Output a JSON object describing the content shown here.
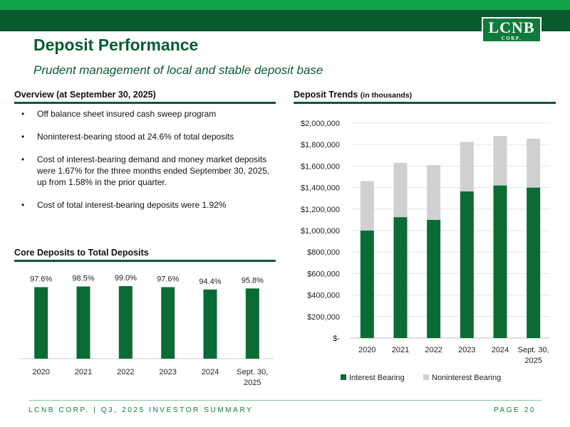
{
  "header": {
    "logo_main": "LCNB",
    "logo_sub": "CORP.",
    "title": "Deposit Performance",
    "subtitle": "Prudent management of local and stable deposit base"
  },
  "overview": {
    "heading": "Overview (at September 30, 2025)",
    "bullets": [
      "Off balance sheet insured cash sweep program",
      "Noninterest-bearing stood at 24.6% of total deposits",
      "Cost of interest-bearing demand and money market deposits were 1.67% for the three months ended September 30, 2025, up from 1.58% in the prior quarter.",
      "Cost of total interest-bearing deposits were 1.92%"
    ]
  },
  "core_deposits": {
    "heading": "Core Deposits to Total Deposits"
  },
  "deposit_trends": {
    "heading": "Deposit Trends",
    "heading_suffix": "(in thousands)"
  },
  "footer": {
    "left": "LCNB CORP. | Q3, 2025 INVESTOR SUMMARY",
    "right": "PAGE 20"
  },
  "colors": {
    "green": "#0b6b35",
    "gray": "#d0d0d0",
    "dark_green": "#0b5a30"
  },
  "chart_data": [
    {
      "type": "bar",
      "title": "Core Deposits to Total Deposits",
      "categories": [
        "2020",
        "2021",
        "2022",
        "2023",
        "2024",
        "Sept. 30, 2025"
      ],
      "values": [
        97.6,
        98.5,
        99.0,
        97.6,
        94.4,
        95.8
      ],
      "value_labels": [
        "97.6%",
        "98.5%",
        "99.0%",
        "97.6%",
        "94.4%",
        "95.8%"
      ],
      "ylim": [
        0,
        100
      ],
      "grid": false
    },
    {
      "type": "bar",
      "stacked": true,
      "title": "Deposit Trends (in thousands)",
      "categories": [
        "2020",
        "2021",
        "2022",
        "2023",
        "2024",
        "Sept. 30, 2025"
      ],
      "series": [
        {
          "name": "Interest Bearing",
          "values": [
            1000000,
            1125000,
            1100000,
            1365000,
            1420000,
            1400000
          ]
        },
        {
          "name": "Noninterest Bearing",
          "values": [
            460000,
            505000,
            510000,
            460000,
            460000,
            455000
          ]
        }
      ],
      "ylim": [
        0,
        2000000
      ],
      "yticks": [
        0,
        200000,
        400000,
        600000,
        800000,
        1000000,
        1200000,
        1400000,
        1600000,
        1800000,
        2000000
      ],
      "ytick_labels": [
        "$-",
        "$200,000",
        "$400,000",
        "$600,000",
        "$800,000",
        "$1,000,000",
        "$1,200,000",
        "$1,400,000",
        "$1,600,000",
        "$1,800,000",
        "$2,000,000"
      ],
      "grid": true,
      "legend": "bottom"
    }
  ]
}
